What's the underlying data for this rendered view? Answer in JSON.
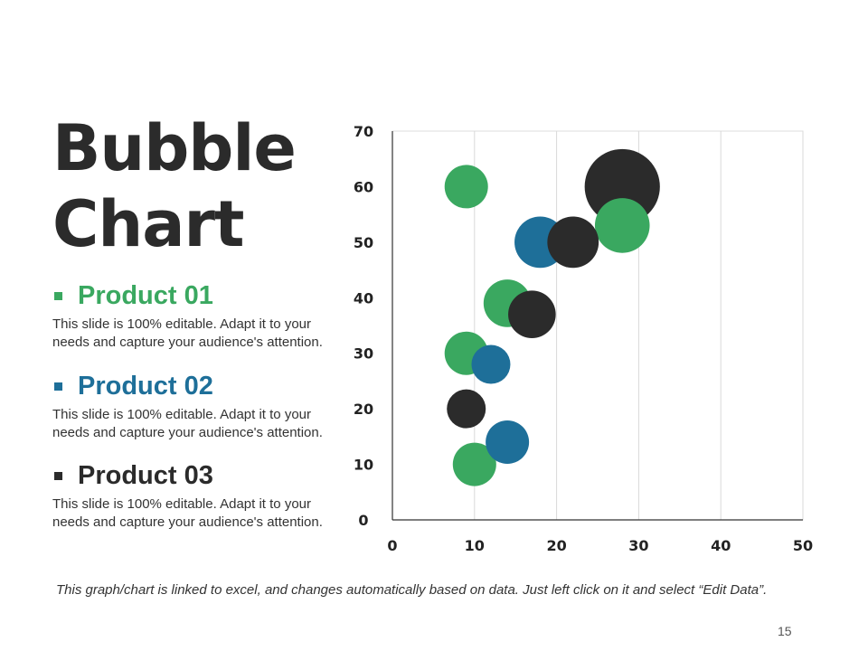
{
  "title": {
    "line1": "Bubble",
    "line2": "Chart"
  },
  "products": [
    {
      "name": "Product 01",
      "color": "#3aa860",
      "description": "This slide is 100% editable. Adapt it to your needs and capture your audience's attention."
    },
    {
      "name": "Product 02",
      "color": "#1e6f99",
      "description": "This slide is 100% editable. Adapt it to your needs and capture your audience's attention."
    },
    {
      "name": "Product 03",
      "color": "#2b2b2b",
      "description": "This slide is 100% editable. Adapt it to your needs and capture your audience's attention."
    }
  ],
  "footer_note": "This graph/chart is linked to excel, and changes automatically based on data. Just left click on it and select “Edit Data”.",
  "page_number": "15",
  "chart_data": {
    "type": "scatter",
    "bubble": true,
    "title": "",
    "xlabel": "",
    "ylabel": "",
    "xlim": [
      0,
      50
    ],
    "ylim": [
      0,
      70
    ],
    "x_ticks": [
      0,
      10,
      20,
      30,
      40,
      50
    ],
    "y_ticks": [
      0,
      10,
      20,
      30,
      40,
      50,
      60,
      70
    ],
    "grid": "vertical",
    "series": [
      {
        "name": "Product 01",
        "color": "#3aa860",
        "points": [
          {
            "x": 10,
            "y": 10,
            "size": 5
          },
          {
            "x": 9,
            "y": 30,
            "size": 5
          },
          {
            "x": 14,
            "y": 39,
            "size": 6
          },
          {
            "x": 9,
            "y": 60,
            "size": 5
          },
          {
            "x": 28,
            "y": 53,
            "size": 8
          }
        ]
      },
      {
        "name": "Product 02",
        "color": "#1e6f99",
        "points": [
          {
            "x": 14,
            "y": 14,
            "size": 5
          },
          {
            "x": 12,
            "y": 28,
            "size": 4
          },
          {
            "x": 18,
            "y": 50,
            "size": 7
          }
        ]
      },
      {
        "name": "Product 03",
        "color": "#2b2b2b",
        "points": [
          {
            "x": 9,
            "y": 20,
            "size": 4
          },
          {
            "x": 17,
            "y": 37,
            "size": 6
          },
          {
            "x": 22,
            "y": 50,
            "size": 7
          },
          {
            "x": 28,
            "y": 60,
            "size": 15
          }
        ]
      }
    ]
  }
}
